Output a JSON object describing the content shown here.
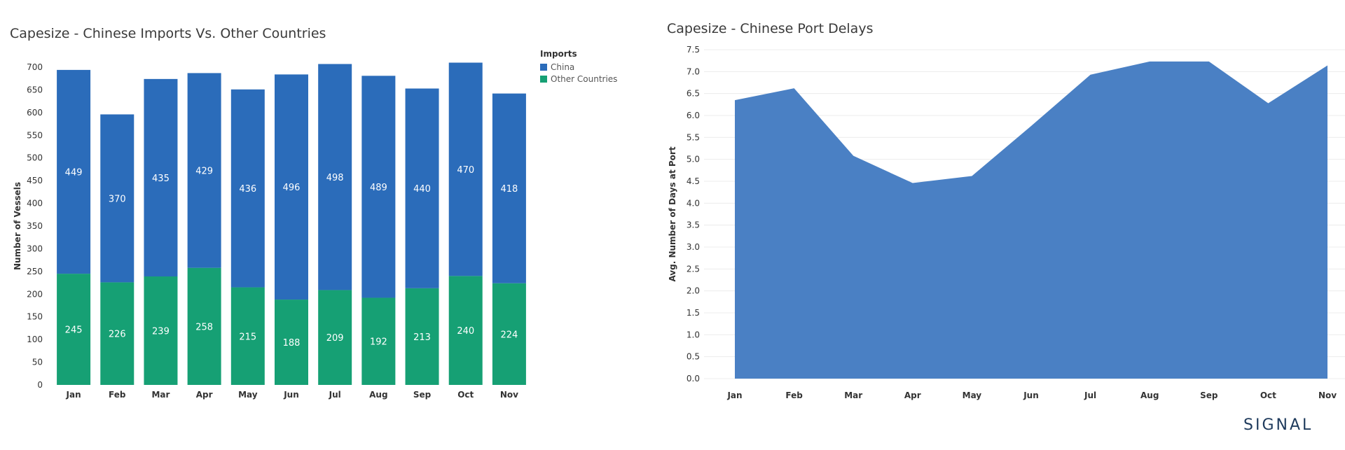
{
  "chart_data": [
    {
      "type": "bar",
      "stacked": true,
      "title": "Capesize - Chinese Imports Vs. Other Countries",
      "xlabel": "",
      "ylabel": "Number of Vessels",
      "ylim": [
        0,
        700
      ],
      "yticks": [
        "0",
        "50",
        "100",
        "150",
        "200",
        "250",
        "300",
        "350",
        "400",
        "450",
        "500",
        "550",
        "600",
        "650",
        "700"
      ],
      "categories": [
        "Jan",
        "Feb",
        "Mar",
        "Apr",
        "May",
        "Jun",
        "Jul",
        "Aug",
        "Sep",
        "Oct",
        "Nov"
      ],
      "legend": {
        "title": "Imports",
        "placement": "top-right"
      },
      "series": [
        {
          "name": "Other Countries",
          "color": "#16a074",
          "values": [
            245,
            226,
            239,
            258,
            215,
            188,
            209,
            192,
            213,
            240,
            224
          ]
        },
        {
          "name": "China",
          "color": "#2b6cba",
          "values": [
            449,
            370,
            435,
            429,
            436,
            496,
            498,
            489,
            440,
            470,
            418
          ]
        }
      ],
      "grid": false
    },
    {
      "type": "area",
      "title": "Capesize - Chinese Port Delays",
      "xlabel": "",
      "ylabel": "Avg. Number of Days at Port",
      "ylim": [
        0,
        7.5
      ],
      "yticks": [
        "0.0",
        "0.5",
        "1.0",
        "1.5",
        "2.0",
        "2.5",
        "3.0",
        "3.5",
        "4.0",
        "4.5",
        "5.0",
        "5.5",
        "6.0",
        "6.5",
        "7.0",
        "7.5"
      ],
      "categories": [
        "Jan",
        "Feb",
        "Mar",
        "Apr",
        "May",
        "Jun",
        "Jul",
        "Aug",
        "Sep",
        "Oct",
        "Nov"
      ],
      "series": [
        {
          "name": "",
          "color": "#4a80c4",
          "values": [
            6.35,
            6.62,
            5.08,
            4.46,
            4.62,
            5.76,
            6.93,
            7.23,
            7.23,
            6.28,
            7.14
          ]
        }
      ],
      "grid": true
    }
  ],
  "logo": {
    "text": "SIGNAL"
  }
}
